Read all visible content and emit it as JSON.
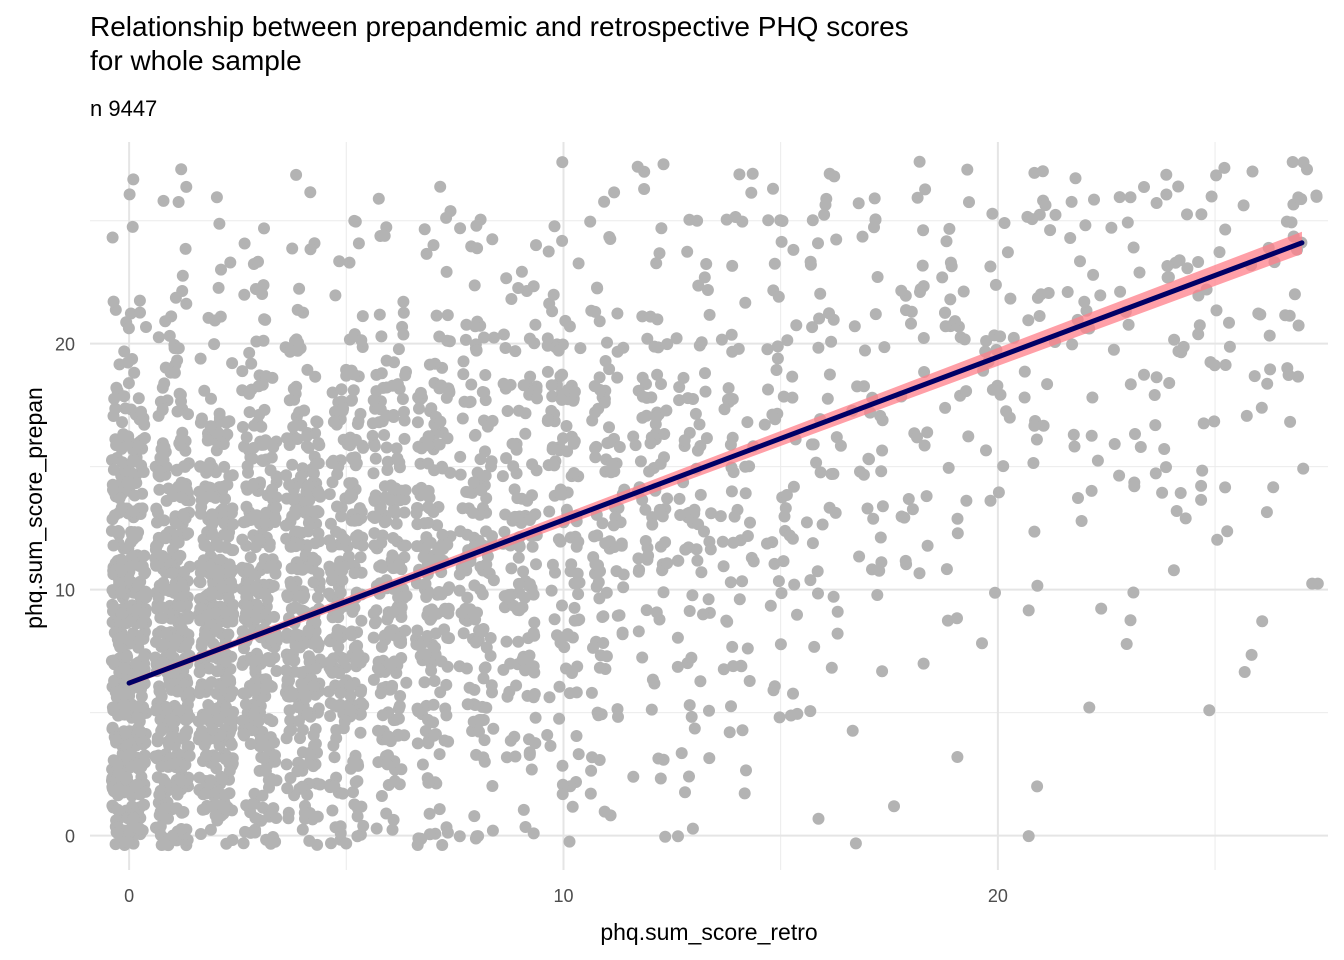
{
  "chart_data": {
    "type": "scatter",
    "title_line1": "Relationship between prepandemic and retrospective PHQ scores",
    "title_line2": "for whole sample",
    "subtitle": "n 9447",
    "xlabel": "phq.sum_score_retro",
    "ylabel": "phq.sum_score_prepan",
    "xlim": [
      -0.9,
      27.6
    ],
    "ylim": [
      -1.4,
      28.2
    ],
    "x_ticks": [
      0,
      10,
      20
    ],
    "y_ticks": [
      0,
      10,
      20
    ],
    "x_tick_labels": [
      "0",
      "10",
      "20"
    ],
    "y_tick_labels": [
      "0",
      "10",
      "20"
    ],
    "grid": true,
    "point_color": "#b3b3b3",
    "fit": {
      "method": "linear",
      "line_color": "#000066",
      "ribbon_color": "#ff7f8a",
      "intercept": 6.2,
      "slope": 0.663,
      "x_range": [
        0,
        27
      ]
    }
  }
}
